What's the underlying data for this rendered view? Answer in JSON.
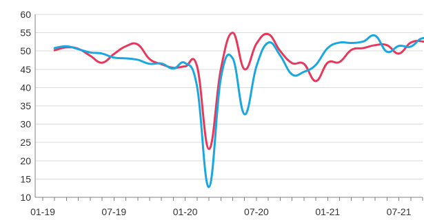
{
  "chart_data": {
    "type": "line",
    "title": "",
    "xlabel": "",
    "ylabel": "",
    "ylim": [
      10,
      60
    ],
    "yticks": [
      10,
      15,
      20,
      25,
      30,
      35,
      40,
      45,
      50,
      55,
      60
    ],
    "xlim": [
      0,
      32
    ],
    "xticks": [
      {
        "x": 0,
        "label": "01-19"
      },
      {
        "x": 6,
        "label": "07-19"
      },
      {
        "x": 12,
        "label": "01-20"
      },
      {
        "x": 18,
        "label": "07-20"
      },
      {
        "x": 24,
        "label": "01-21"
      },
      {
        "x": 30,
        "label": "07-21"
      }
    ],
    "grid": true,
    "legend": false,
    "x": [
      "02-19",
      "03-19",
      "04-19",
      "05-19",
      "06-19",
      "07-19",
      "08-19",
      "09-19",
      "10-19",
      "11-19",
      "12-19",
      "01-20",
      "02-20",
      "03-20",
      "04-20",
      "05-20",
      "06-20",
      "07-20",
      "08-20",
      "09-20",
      "10-20",
      "11-20",
      "12-20",
      "01-21",
      "02-21",
      "03-21",
      "04-21",
      "05-21",
      "06-21",
      "07-21",
      "08-21",
      "09-21",
      "10-21"
    ],
    "series": [
      {
        "color": "#e8375a",
        "values": [
          50.2,
          51.0,
          50.6,
          48.7,
          46.8,
          49.2,
          51.3,
          51.8,
          47.8,
          46.4,
          45.4,
          45.8,
          45.8,
          23.2,
          45.0,
          55.0,
          45.0,
          52.0,
          54.6,
          50.0,
          46.7,
          46.5,
          41.8,
          46.8,
          47.0,
          50.3,
          50.8,
          51.6,
          51.6,
          49.3,
          52.3,
          52.6,
          51.5
        ]
      },
      {
        "color": "#1aa7e0",
        "values": [
          50.8,
          51.3,
          50.5,
          49.6,
          49.3,
          48.2,
          48.0,
          47.6,
          46.5,
          46.6,
          45.2,
          46.7,
          40.3,
          12.8,
          42.5,
          48.0,
          32.7,
          45.8,
          52.3,
          48.8,
          43.6,
          44.3,
          46.2,
          50.8,
          52.3,
          52.2,
          52.6,
          54.2,
          49.8,
          51.4,
          51.2,
          53.5,
          51.8
        ]
      }
    ]
  }
}
